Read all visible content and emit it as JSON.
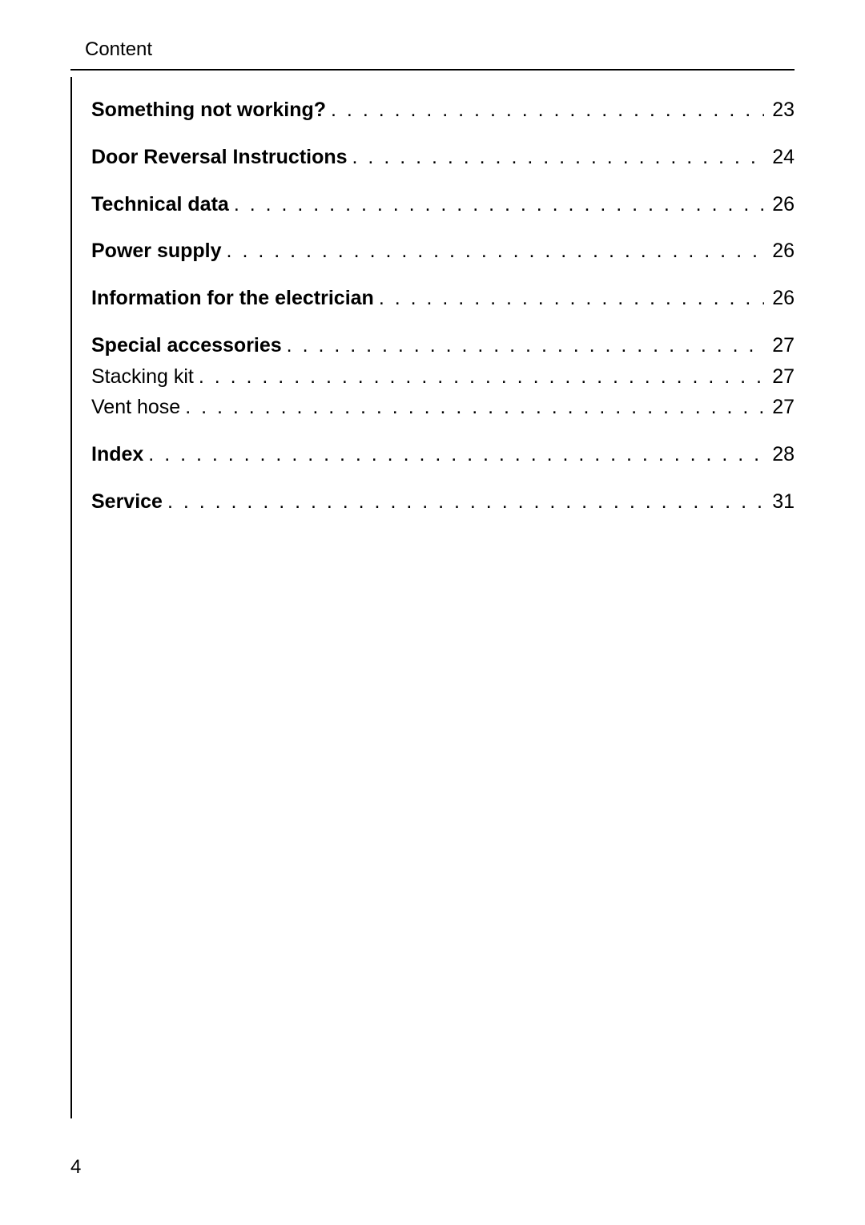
{
  "header": "Content",
  "page_number": "4",
  "dot_fill": ". . . . . . . . . . . . . . . . . . . . . . . . . . . . . . . . . . . . . . . . . . . . . . . . . . . . . . . . . . . . . . . . . . . . . . . . . . . . . . . . . . . . . . . . . . . . . . . . . . . . . . . . . . . . . . . . . . . . . . . . . . . . . .",
  "toc": [
    {
      "items": [
        {
          "label": "Something not working?",
          "page": "23",
          "bold": true
        }
      ]
    },
    {
      "items": [
        {
          "label": "Door Reversal Instructions",
          "page": "24",
          "bold": true
        }
      ]
    },
    {
      "items": [
        {
          "label": "Technical data",
          "page": "26",
          "bold": true
        }
      ]
    },
    {
      "items": [
        {
          "label": "Power supply",
          "page": "26",
          "bold": true
        }
      ]
    },
    {
      "items": [
        {
          "label": "Information for the electrician",
          "page": "26",
          "bold": true
        }
      ]
    },
    {
      "items": [
        {
          "label": "Special accessories",
          "page": "27",
          "bold": true
        },
        {
          "label": "Stacking kit",
          "page": "27",
          "bold": false
        },
        {
          "label": "Vent hose",
          "page": "27",
          "bold": false
        }
      ]
    },
    {
      "items": [
        {
          "label": "Index",
          "page": "28",
          "bold": true
        }
      ]
    },
    {
      "items": [
        {
          "label": "Service",
          "page": "31",
          "bold": true
        }
      ]
    }
  ]
}
